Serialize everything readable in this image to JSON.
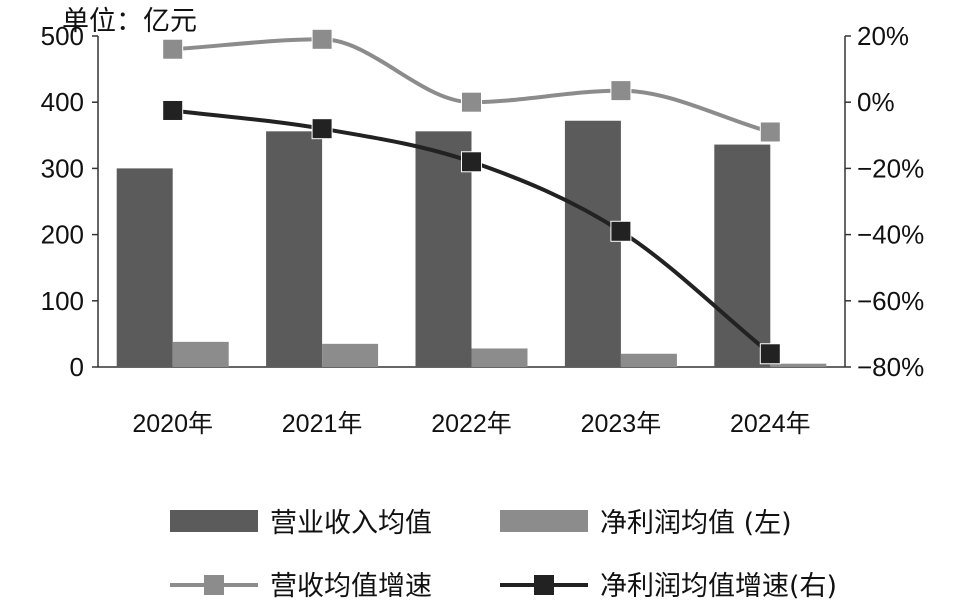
{
  "chart_data": {
    "type": "bar",
    "unit_label": "单位：亿元",
    "categories": [
      "2020年",
      "2021年",
      "2022年",
      "2023年",
      "2024年"
    ],
    "y_left": {
      "min": 0,
      "max": 500,
      "ticks": [
        "0",
        "100",
        "200",
        "300",
        "400",
        "500"
      ]
    },
    "y_right": {
      "min": -80,
      "max": 20,
      "ticks": [
        "−80%",
        "−60%",
        "−40%",
        "−20%",
        "0%",
        "20%"
      ]
    },
    "series": [
      {
        "name": "营业收入均值",
        "kind": "bar",
        "axis": "left",
        "color": "#5b5b5b",
        "values": [
          300,
          356,
          356,
          372,
          336
        ]
      },
      {
        "name": "净利润均值 (左)",
        "kind": "bar",
        "axis": "left",
        "color": "#8c8c8c",
        "values": [
          38,
          35,
          28,
          20,
          5
        ]
      },
      {
        "name": "营收均值增速",
        "kind": "line",
        "axis": "right",
        "color": "#8c8c8c",
        "marker": "square",
        "values": [
          16,
          19,
          0,
          3.5,
          -9
        ]
      },
      {
        "name": "净利润均值增速(右)",
        "kind": "line",
        "axis": "right",
        "color": "#222222",
        "marker": "square",
        "values": [
          -2.5,
          -8,
          -18,
          -39,
          -76
        ]
      }
    ],
    "legend": "bottom"
  }
}
